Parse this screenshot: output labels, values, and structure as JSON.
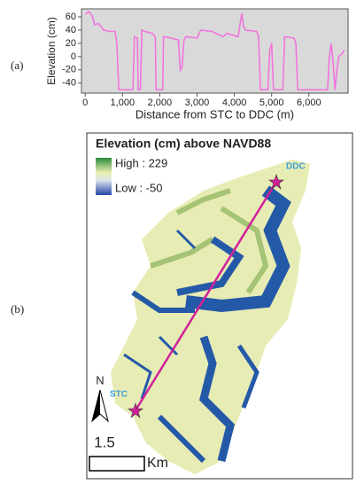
{
  "panel_labels": [
    "(a)",
    "(b)"
  ],
  "chart_data": {
    "type": "line",
    "x_label": "Distance from STC to DDC (m)",
    "y_label": "Elevation (cm)",
    "xlim": [
      -100,
      7050
    ],
    "ylim": [
      -55,
      72
    ],
    "xticks": [
      0,
      {
        "value": 1000,
        "label": "1,000"
      },
      {
        "value": 2000,
        "label": "2,000"
      },
      {
        "value": 3000,
        "label": "3,000"
      },
      {
        "value": 4000,
        "label": "4,000"
      },
      {
        "value": 5000,
        "label": "5,000"
      },
      {
        "value": 6000,
        "label": "6,000"
      }
    ],
    "yticks": [
      -40,
      -20,
      0,
      20,
      40,
      60
    ],
    "grid": false,
    "series": [
      {
        "color": "#f075dc",
        "x": [
          0,
          100,
          200,
          250,
          350,
          500,
          650,
          800,
          850,
          900,
          1000,
          1200,
          1280,
          1320,
          1400,
          1420,
          1480,
          1520,
          1600,
          1800,
          1880,
          1900,
          2000,
          2080,
          2100,
          2300,
          2500,
          2550,
          2600,
          2650,
          2700,
          3000,
          3100,
          3400,
          3700,
          3800,
          4100,
          4200,
          4250,
          4300,
          4600,
          4650,
          4700,
          4900,
          4950,
          5000,
          5050,
          5100,
          5300,
          5350,
          5600,
          5650,
          5700,
          6000,
          6500,
          6550,
          6600,
          6650,
          6700,
          6750,
          6800,
          6900,
          6950
        ],
        "values": [
          64,
          68,
          60,
          48,
          50,
          40,
          38,
          38,
          20,
          -50,
          -50,
          -50,
          -50,
          30,
          28,
          -50,
          -50,
          40,
          38,
          35,
          30,
          -50,
          -50,
          -50,
          30,
          28,
          25,
          -20,
          -15,
          25,
          30,
          28,
          40,
          38,
          30,
          35,
          30,
          65,
          45,
          40,
          38,
          30,
          -50,
          -50,
          10,
          20,
          -50,
          -50,
          -50,
          30,
          28,
          20,
          -50,
          -50,
          -50,
          0,
          20,
          -10,
          -50,
          -20,
          0,
          5,
          10
        ]
      }
    ]
  },
  "map": {
    "title": "Elevation (cm) above NAVD88",
    "legend_high": "High : 229",
    "legend_low": "Low : -50",
    "start_label": "STC",
    "end_label": "DDC",
    "north": "N",
    "scale_value": "1.5",
    "scale_unit": "Km"
  }
}
